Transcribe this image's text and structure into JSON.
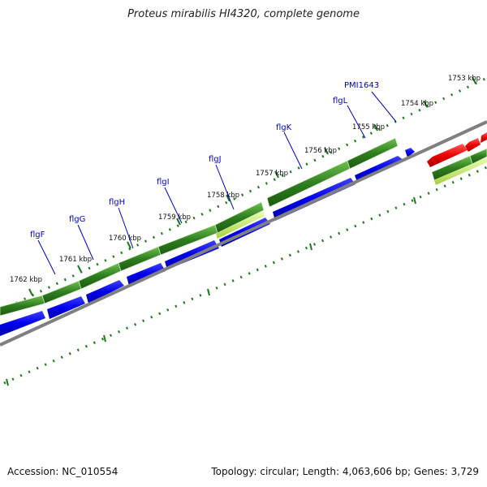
{
  "title": "Proteus mirabilis HI4320, complete genome",
  "footer": {
    "accession": "Accession: NC_010554",
    "summary": "Topology: circular; Length: 4,063,606 bp; Genes: 3,729"
  },
  "kbp_labels": [
    "1753 kbp",
    "1754 kbp",
    "1755 kbp",
    "1756 kbp",
    "1757 kbp",
    "1758 kbp",
    "1759 kbp",
    "1760 kbp",
    "1761 kbp",
    "1762 kbp"
  ],
  "gene_labels": [
    "PMI1643",
    "flgL",
    "flgK",
    "flgJ",
    "flgI",
    "flgH",
    "flgG",
    "flgF"
  ],
  "colors": {
    "backbone": "#808080",
    "cds_blue": "#0000ee",
    "gene_green": "#2e7d1e",
    "lime": "#c6f060",
    "red": "#ee0000",
    "tick_green": "#1a7a1a",
    "label_blue": "#0000cc"
  }
}
